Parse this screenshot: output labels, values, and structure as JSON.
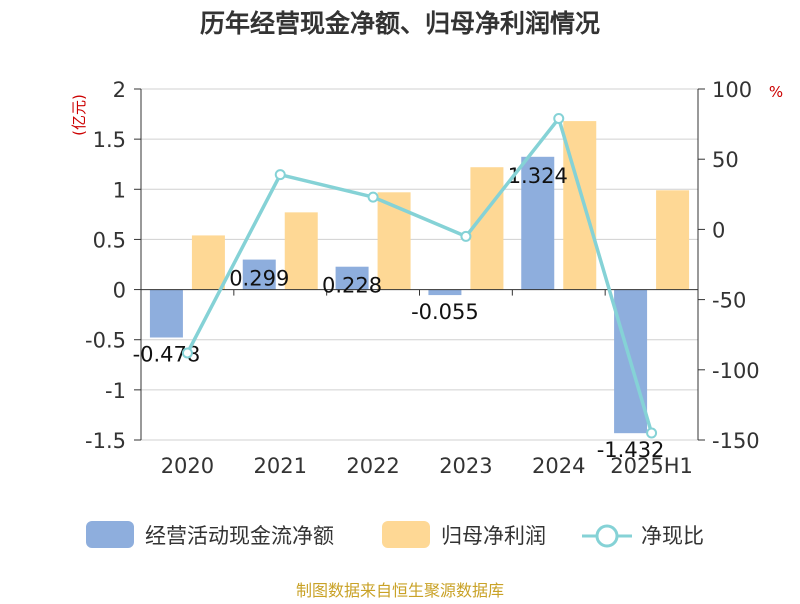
{
  "chart_data": {
    "type": "bar",
    "title": "历年经营现金净额、归母净利润情况",
    "categories": [
      "2020",
      "2021",
      "2022",
      "2023",
      "2024",
      "2025H1"
    ],
    "series": [
      {
        "name": "经营活动现金流净额",
        "type": "bar",
        "axis": "left",
        "color": "#8eaedd",
        "values": [
          -0.478,
          0.299,
          0.228,
          -0.055,
          1.324,
          -1.432
        ],
        "labels": [
          "-0.478",
          "0.299",
          "0.228",
          "-0.055",
          "1.324",
          "-1.432"
        ]
      },
      {
        "name": "归母净利润",
        "type": "bar",
        "axis": "left",
        "color": "#fed895",
        "values": [
          0.54,
          0.77,
          0.97,
          1.22,
          1.68,
          0.99
        ]
      },
      {
        "name": "净现比",
        "type": "line",
        "axis": "right",
        "color": "#85d2d6",
        "values": [
          -88,
          39,
          23,
          -5,
          79,
          -145
        ]
      }
    ],
    "ylabel": "(亿元)",
    "y2label": "%",
    "ylim": [
      -1.5,
      2
    ],
    "yticks": [
      "2",
      "1.5",
      "1",
      "0.5",
      "0",
      "-0.5",
      "-1",
      "-1.5"
    ],
    "y2lim": [
      -150,
      100
    ],
    "y2ticks": [
      "100",
      "50",
      "0",
      "-50",
      "-100",
      "-150"
    ],
    "grid": true,
    "legend_position": "bottom"
  },
  "source": "制图数据来自恒生聚源数据库"
}
